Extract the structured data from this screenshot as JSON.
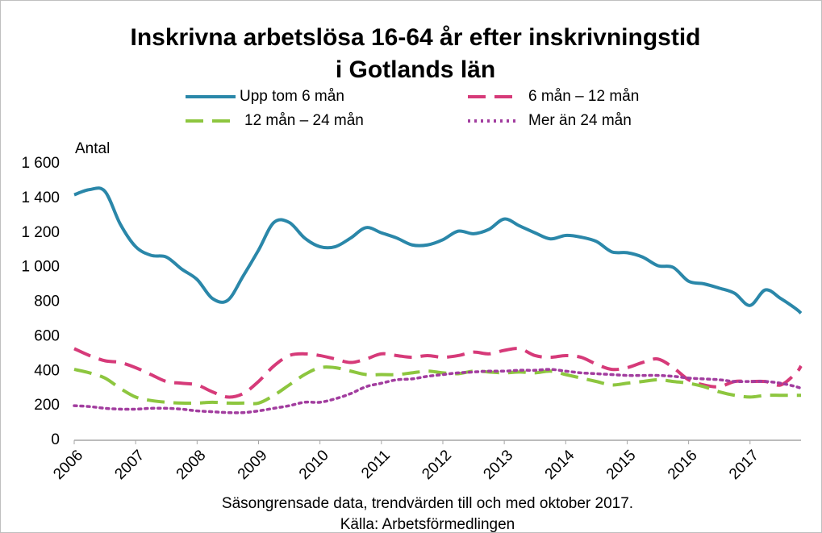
{
  "chart_data": {
    "type": "line",
    "title": [
      "Inskrivna arbetslösa 16-64 år efter inskrivningstid",
      "i Gotlands län"
    ],
    "y_axis_label": "Antal",
    "footnotes": [
      "Säsongrensade data, trendvärden till och med oktober 2017.",
      "Källa: Arbetsförmedlingen"
    ],
    "x": [
      2006,
      2006.25,
      2006.5,
      2006.75,
      2007,
      2007.25,
      2007.5,
      2007.75,
      2008,
      2008.25,
      2008.5,
      2008.75,
      2009,
      2009.25,
      2009.5,
      2009.75,
      2010,
      2010.25,
      2010.5,
      2010.75,
      2011,
      2011.25,
      2011.5,
      2011.75,
      2012,
      2012.25,
      2012.5,
      2012.75,
      2013,
      2013.25,
      2013.5,
      2013.75,
      2014,
      2014.25,
      2014.5,
      2014.75,
      2015,
      2015.25,
      2015.5,
      2015.75,
      2016,
      2016.25,
      2016.5,
      2016.75,
      2017,
      2017.25,
      2017.5,
      2017.75,
      2017.83
    ],
    "xlim": [
      2006,
      2017.83
    ],
    "xticks": [
      2006,
      2007,
      2008,
      2009,
      2010,
      2011,
      2012,
      2013,
      2014,
      2015,
      2016,
      2017
    ],
    "ylim": [
      0,
      1600
    ],
    "yticks": [
      0,
      200,
      400,
      600,
      800,
      {
        "value": 1000,
        "label": "1 000"
      },
      {
        "value": 1200,
        "label": "1 200"
      },
      {
        "value": 1400,
        "label": "1 400"
      },
      {
        "value": 1600,
        "label": "1 600"
      }
    ],
    "series": [
      {
        "name": "Upp tom 6 mån",
        "color": "#2a87a9",
        "dash": "solid",
        "values": [
          1420,
          1450,
          1440,
          1250,
          1120,
          1070,
          1060,
          990,
          930,
          820,
          810,
          950,
          1100,
          1260,
          1260,
          1170,
          1120,
          1120,
          1170,
          1230,
          1200,
          1170,
          1130,
          1130,
          1160,
          1210,
          1195,
          1220,
          1280,
          1240,
          1200,
          1165,
          1185,
          1175,
          1150,
          1090,
          1085,
          1060,
          1010,
          1000,
          920,
          905,
          880,
          850,
          780,
          870,
          820,
          760,
          735
        ]
      },
      {
        "name": "6 mån – 12 mån",
        "color": "#d63a79",
        "dash": "dashed",
        "values": [
          530,
          490,
          460,
          450,
          420,
          380,
          340,
          330,
          320,
          280,
          250,
          270,
          340,
          430,
          490,
          500,
          490,
          470,
          450,
          470,
          500,
          490,
          480,
          490,
          480,
          490,
          510,
          500,
          520,
          530,
          490,
          480,
          490,
          480,
          440,
          410,
          420,
          450,
          470,
          420,
          350,
          320,
          310,
          340,
          340,
          340,
          320,
          390,
          430
        ]
      },
      {
        "name": "12 mån – 24 mån",
        "color": "#8dc63f",
        "dash": "dashed",
        "values": [
          410,
          390,
          360,
          300,
          250,
          230,
          220,
          215,
          215,
          220,
          215,
          215,
          215,
          260,
          320,
          380,
          420,
          420,
          400,
          380,
          380,
          380,
          390,
          400,
          390,
          385,
          400,
          395,
          390,
          395,
          390,
          400,
          380,
          360,
          340,
          320,
          330,
          340,
          350,
          340,
          330,
          310,
          280,
          260,
          250,
          260,
          260,
          260,
          260
        ]
      },
      {
        "name": "Mer än 24 mån",
        "color": "#a23d9f",
        "dash": "dotted",
        "values": [
          200,
          195,
          185,
          180,
          180,
          185,
          185,
          180,
          170,
          165,
          160,
          160,
          170,
          185,
          200,
          220,
          220,
          240,
          270,
          310,
          330,
          350,
          355,
          370,
          380,
          390,
          395,
          400,
          400,
          405,
          405,
          410,
          400,
          390,
          385,
          380,
          375,
          375,
          375,
          370,
          360,
          355,
          350,
          340,
          340,
          340,
          330,
          310,
          300
        ]
      }
    ]
  }
}
